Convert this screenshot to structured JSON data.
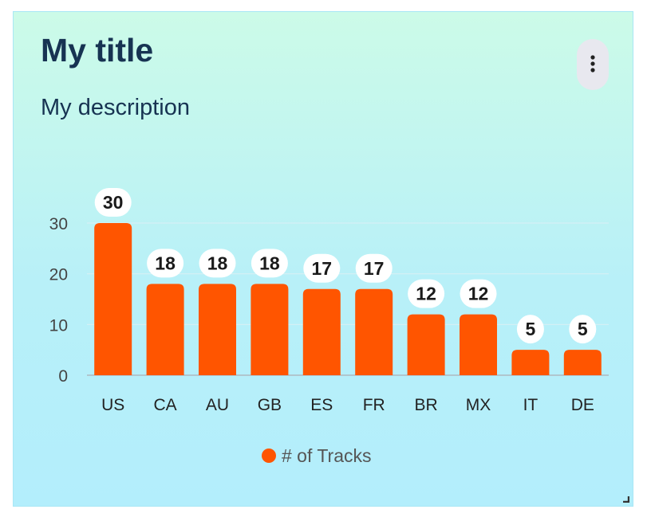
{
  "card": {
    "title": "My title",
    "description": "My description",
    "menu_icon": "vertical-ellipsis-icon"
  },
  "colors": {
    "bar": "#ff5500",
    "text_dark": "#173352",
    "axis_text": "#444444",
    "legend_text": "#555555",
    "label_bg": "#ffffff"
  },
  "chart_data": {
    "type": "bar",
    "categories": [
      "US",
      "CA",
      "AU",
      "GB",
      "ES",
      "FR",
      "BR",
      "MX",
      "IT",
      "DE"
    ],
    "series": [
      {
        "name": "# of Tracks",
        "values": [
          30,
          18,
          18,
          18,
          17,
          17,
          12,
          12,
          5,
          5
        ]
      }
    ],
    "yticks": [
      0,
      10,
      20,
      30
    ],
    "ylim": [
      0,
      30
    ],
    "grid": true,
    "data_labels": true,
    "legend": "bottom-center"
  }
}
